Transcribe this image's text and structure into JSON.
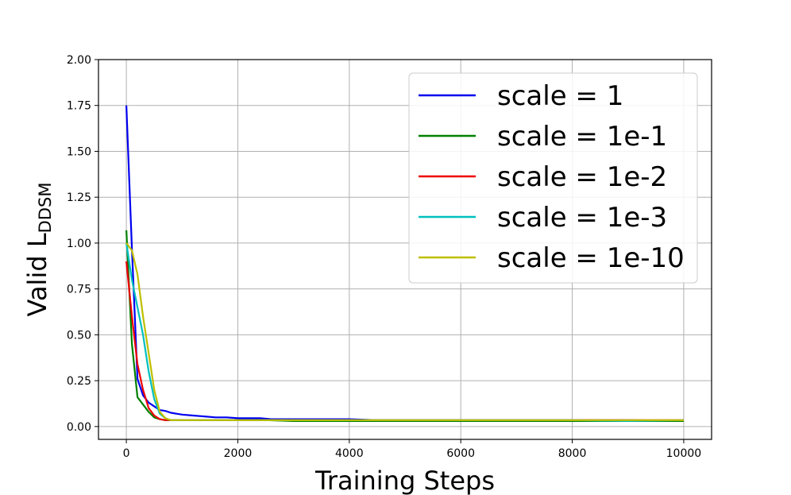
{
  "chart_data": {
    "type": "line",
    "xlabel": "Training Steps",
    "ylabel": "Valid L",
    "ylabel_subscript": "DDSM",
    "xlim": [
      -500,
      10500
    ],
    "ylim": [
      -0.07,
      2.0
    ],
    "xticks": [
      0,
      2000,
      4000,
      6000,
      8000,
      10000
    ],
    "xtick_labels": [
      "0",
      "2000",
      "4000",
      "6000",
      "8000",
      "10000"
    ],
    "yticks": [
      0.0,
      0.25,
      0.5,
      0.75,
      1.0,
      1.25,
      1.5,
      1.75,
      2.0
    ],
    "ytick_labels": [
      "0.00",
      "0.25",
      "0.50",
      "0.75",
      "1.00",
      "1.25",
      "1.50",
      "1.75",
      "2.00"
    ],
    "grid": true,
    "legend_position": "top-right",
    "series": [
      {
        "name": "scale = 1",
        "color": "#0000ee",
        "x": [
          0,
          100,
          200,
          300,
          400,
          500,
          600,
          700,
          800,
          900,
          1000,
          1200,
          1400,
          1600,
          1800,
          2000,
          2200,
          2400,
          2600,
          2800,
          3000,
          3500,
          4000,
          4500,
          5000,
          5500,
          6000,
          6500,
          7000,
          7500,
          8000,
          8500,
          9000,
          9500,
          10000
        ],
        "y": [
          1.75,
          0.97,
          0.26,
          0.17,
          0.13,
          0.11,
          0.09,
          0.085,
          0.075,
          0.07,
          0.065,
          0.06,
          0.055,
          0.05,
          0.05,
          0.045,
          0.045,
          0.045,
          0.04,
          0.04,
          0.04,
          0.04,
          0.04,
          0.035,
          0.035,
          0.035,
          0.035,
          0.035,
          0.035,
          0.035,
          0.035,
          0.035,
          0.035,
          0.033,
          0.033
        ]
      },
      {
        "name": "scale = 1e-1",
        "color": "#008000",
        "x": [
          0,
          100,
          200,
          300,
          400,
          500,
          600,
          700,
          800,
          900,
          1000,
          1500,
          2000,
          2500,
          3000,
          3500,
          4000,
          5000,
          6000,
          7000,
          8000,
          9000,
          10000
        ],
        "y": [
          1.07,
          0.45,
          0.16,
          0.12,
          0.08,
          0.05,
          0.04,
          0.035,
          0.035,
          0.035,
          0.035,
          0.035,
          0.035,
          0.035,
          0.03,
          0.03,
          0.03,
          0.03,
          0.03,
          0.03,
          0.03,
          0.03,
          0.03
        ]
      },
      {
        "name": "scale = 1e-2",
        "color": "#ee0000",
        "x": [
          0,
          100,
          200,
          300,
          400,
          500,
          600,
          700,
          800,
          1000,
          1500,
          2000,
          2500,
          3000,
          4000,
          5000,
          6000,
          7000,
          8000,
          9000,
          10000
        ],
        "y": [
          0.9,
          0.6,
          0.34,
          0.2,
          0.1,
          0.06,
          0.04,
          0.035,
          0.035,
          0.035,
          0.035,
          0.035,
          0.035,
          0.035,
          0.035,
          0.035,
          0.035,
          0.035,
          0.035,
          0.035,
          0.035
        ]
      },
      {
        "name": "scale = 1e-3",
        "color": "#00bfbf",
        "x": [
          0,
          100,
          200,
          300,
          400,
          500,
          600,
          700,
          800,
          1000,
          1500,
          2000,
          2500,
          3000,
          4000,
          5000,
          6000,
          7000,
          8000,
          9000,
          10000
        ],
        "y": [
          1.0,
          0.8,
          0.65,
          0.5,
          0.3,
          0.15,
          0.07,
          0.045,
          0.035,
          0.035,
          0.035,
          0.035,
          0.035,
          0.035,
          0.035,
          0.035,
          0.035,
          0.035,
          0.035,
          0.03,
          0.035
        ]
      },
      {
        "name": "scale = 1e-10",
        "color": "#bfbf00",
        "x": [
          0,
          100,
          200,
          300,
          400,
          500,
          600,
          700,
          800,
          1000,
          1500,
          2000,
          2500,
          3000,
          4000,
          5000,
          6000,
          7000,
          8000,
          9000,
          10000
        ],
        "y": [
          1.0,
          0.96,
          0.83,
          0.6,
          0.4,
          0.2,
          0.08,
          0.045,
          0.035,
          0.035,
          0.035,
          0.035,
          0.035,
          0.035,
          0.035,
          0.035,
          0.035,
          0.035,
          0.035,
          0.035,
          0.035
        ]
      }
    ]
  }
}
